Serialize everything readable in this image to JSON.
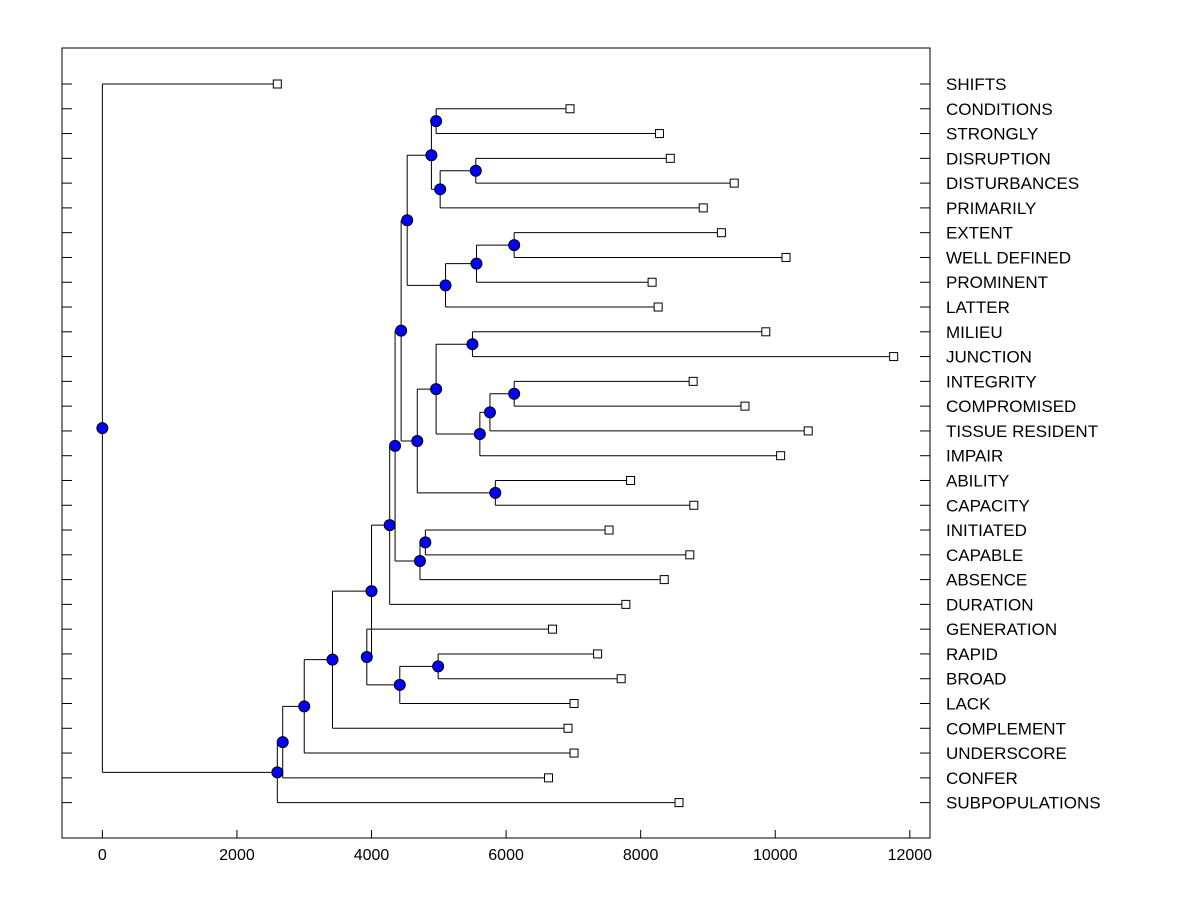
{
  "chart_data": {
    "type": "dendrogram",
    "title": "",
    "xlabel": "",
    "ylabel": "",
    "xlim": [
      -600,
      12300
    ],
    "xticks": [
      0,
      2000,
      4000,
      6000,
      8000,
      10000,
      12000
    ],
    "xtick_labels": [
      "0",
      "2000",
      "4000",
      "6000",
      "8000",
      "10000",
      "12000"
    ],
    "colors": {
      "node": "#0000ff",
      "line": "#000000",
      "leaf_fill": "#ffffff"
    },
    "leaves": [
      {
        "id": "l0",
        "label": "SHIFTS",
        "value": 2600
      },
      {
        "id": "l1",
        "label": "CONDITIONS",
        "value": 6950
      },
      {
        "id": "l2",
        "label": "STRONGLY",
        "value": 8280
      },
      {
        "id": "l3",
        "label": "DISRUPTION",
        "value": 8440
      },
      {
        "id": "l4",
        "label": "DISTURBANCES",
        "value": 9390
      },
      {
        "id": "l5",
        "label": "PRIMARILY",
        "value": 8930
      },
      {
        "id": "l6",
        "label": "EXTENT",
        "value": 9200
      },
      {
        "id": "l7",
        "label": "WELL DEFINED",
        "value": 10160
      },
      {
        "id": "l8",
        "label": "PROMINENT",
        "value": 8170
      },
      {
        "id": "l9",
        "label": "LATTER",
        "value": 8260
      },
      {
        "id": "l10",
        "label": "MILIEU",
        "value": 9860
      },
      {
        "id": "l11",
        "label": "JUNCTION",
        "value": 11760
      },
      {
        "id": "l12",
        "label": "INTEGRITY",
        "value": 8780
      },
      {
        "id": "l13",
        "label": "COMPROMISED",
        "value": 9550
      },
      {
        "id": "l14",
        "label": "TISSUE RESIDENT",
        "value": 10490
      },
      {
        "id": "l15",
        "label": "IMPAIR",
        "value": 10080
      },
      {
        "id": "l16",
        "label": "ABILITY",
        "value": 7850
      },
      {
        "id": "l17",
        "label": "CAPACITY",
        "value": 8790
      },
      {
        "id": "l18",
        "label": "INITIATED",
        "value": 7530
      },
      {
        "id": "l19",
        "label": "CAPABLE",
        "value": 8730
      },
      {
        "id": "l20",
        "label": "ABSENCE",
        "value": 8350
      },
      {
        "id": "l21",
        "label": "DURATION",
        "value": 7780
      },
      {
        "id": "l22",
        "label": "GENERATION",
        "value": 6690
      },
      {
        "id": "l23",
        "label": "RAPID",
        "value": 7360
      },
      {
        "id": "l24",
        "label": "BROAD",
        "value": 7710
      },
      {
        "id": "l25",
        "label": "LACK",
        "value": 7010
      },
      {
        "id": "l26",
        "label": "COMPLEMENT",
        "value": 6920
      },
      {
        "id": "l27",
        "label": "UNDERSCORE",
        "value": 7010
      },
      {
        "id": "l28",
        "label": "CONFER",
        "value": 6630
      },
      {
        "id": "l29",
        "label": "SUBPOPULATIONS",
        "value": 8570
      }
    ],
    "nodes": [
      {
        "id": "nA",
        "value": 4960,
        "children": [
          "l1",
          "l2"
        ]
      },
      {
        "id": "nB",
        "value": 5550,
        "children": [
          "l3",
          "l4"
        ]
      },
      {
        "id": "nC",
        "value": 5020,
        "children": [
          "nB",
          "l5"
        ]
      },
      {
        "id": "nD",
        "value": 4890,
        "children": [
          "nA",
          "nC"
        ]
      },
      {
        "id": "nE",
        "value": 6120,
        "children": [
          "l6",
          "l7"
        ]
      },
      {
        "id": "nF",
        "value": 5560,
        "children": [
          "nE",
          "l8"
        ]
      },
      {
        "id": "nG",
        "value": 5100,
        "children": [
          "nF",
          "l9"
        ]
      },
      {
        "id": "nH",
        "value": 4530,
        "children": [
          "nD",
          "nG"
        ]
      },
      {
        "id": "nI",
        "value": 5500,
        "children": [
          "l10",
          "l11"
        ]
      },
      {
        "id": "nJ",
        "value": 6120,
        "children": [
          "l12",
          "l13"
        ]
      },
      {
        "id": "nK",
        "value": 5760,
        "children": [
          "nJ",
          "l14"
        ]
      },
      {
        "id": "nL",
        "value": 5610,
        "children": [
          "nK",
          "l15"
        ]
      },
      {
        "id": "nM",
        "value": 4960,
        "children": [
          "nI",
          "nL"
        ]
      },
      {
        "id": "nN",
        "value": 5840,
        "children": [
          "l16",
          "l17"
        ]
      },
      {
        "id": "nO",
        "value": 4680,
        "children": [
          "nM",
          "nN"
        ]
      },
      {
        "id": "nP",
        "value": 4440,
        "children": [
          "nH",
          "nO"
        ]
      },
      {
        "id": "nQ",
        "value": 4800,
        "children": [
          "l18",
          "l19"
        ]
      },
      {
        "id": "nR",
        "value": 4720,
        "children": [
          "nQ",
          "l20"
        ]
      },
      {
        "id": "nS",
        "value": 4350,
        "children": [
          "nP",
          "nR"
        ]
      },
      {
        "id": "nT",
        "value": 4270,
        "children": [
          "nS",
          "l21"
        ]
      },
      {
        "id": "nU",
        "value": 4990,
        "children": [
          "l23",
          "l24"
        ]
      },
      {
        "id": "nV",
        "value": 4420,
        "children": [
          "nU",
          "l25"
        ]
      },
      {
        "id": "nW",
        "value": 3930,
        "children": [
          "l22",
          "nV"
        ]
      },
      {
        "id": "nX",
        "value": 4000,
        "children": [
          "nT",
          "nW"
        ]
      },
      {
        "id": "nY",
        "value": 3420,
        "children": [
          "nX",
          "l26"
        ]
      },
      {
        "id": "nZ",
        "value": 3000,
        "children": [
          "nY",
          "l27"
        ]
      },
      {
        "id": "nAA",
        "value": 2680,
        "children": [
          "nZ",
          "l28"
        ]
      },
      {
        "id": "nAB",
        "value": 2600,
        "children": [
          "nAA",
          "l29"
        ]
      },
      {
        "id": "nRoot",
        "value": 0,
        "children": [
          "l0",
          "nAB"
        ]
      }
    ]
  }
}
